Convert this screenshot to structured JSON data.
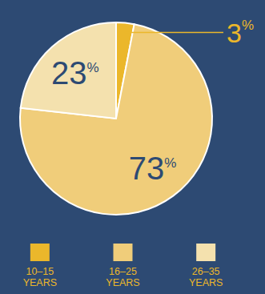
{
  "chart_data": {
    "type": "pie",
    "categories": [
      "10–15 YEARS",
      "16–25 YEARS",
      "26–35 YEARS"
    ],
    "values": [
      3,
      73,
      23
    ],
    "value_labels": [
      "3%",
      "73%",
      "23%"
    ],
    "colors": [
      "#ebb72b",
      "#f0cd7a",
      "#f4e1ae"
    ],
    "data_labels": true,
    "legend": "bottom"
  }
}
